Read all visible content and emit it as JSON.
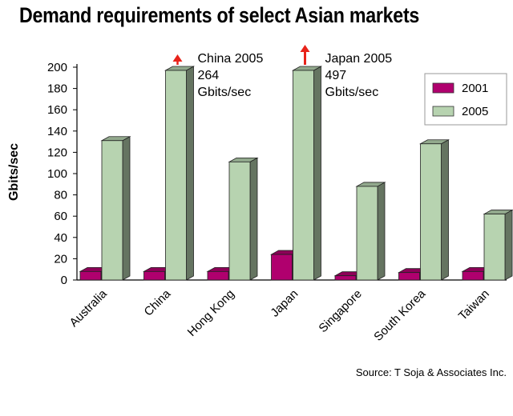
{
  "chart_data": {
    "type": "bar",
    "title": "Demand requirements of select Asian markets",
    "xlabel": "",
    "ylabel": "Gbits/sec",
    "ylim": [
      0,
      200
    ],
    "yticks": [
      0,
      20,
      40,
      60,
      80,
      100,
      120,
      140,
      160,
      180,
      200
    ],
    "categories": [
      "Australia",
      "China",
      "Hong Kong",
      "Japan",
      "Singapore",
      "South Korea",
      "Taiwan"
    ],
    "series": [
      {
        "name": "2001",
        "color": "#b0006e",
        "values": [
          8,
          8,
          8,
          24,
          4,
          7,
          8
        ]
      },
      {
        "name": "2005",
        "color": "#b7d3b0",
        "values": [
          131,
          197,
          111,
          197,
          88,
          128,
          62
        ]
      }
    ],
    "legend": "top-right",
    "grid": false,
    "annotations": [
      {
        "category": "China",
        "lines": [
          "China 2005",
          "264",
          "Gbits/sec"
        ],
        "actual_value": 264,
        "arrow_color": "#e8231a"
      },
      {
        "category": "Japan",
        "lines": [
          "Japan 2005",
          "497",
          "Gbits/sec"
        ],
        "actual_value": 497,
        "arrow_color": "#e8231a"
      }
    ],
    "source": "Source: T Soja & Associates Inc."
  }
}
